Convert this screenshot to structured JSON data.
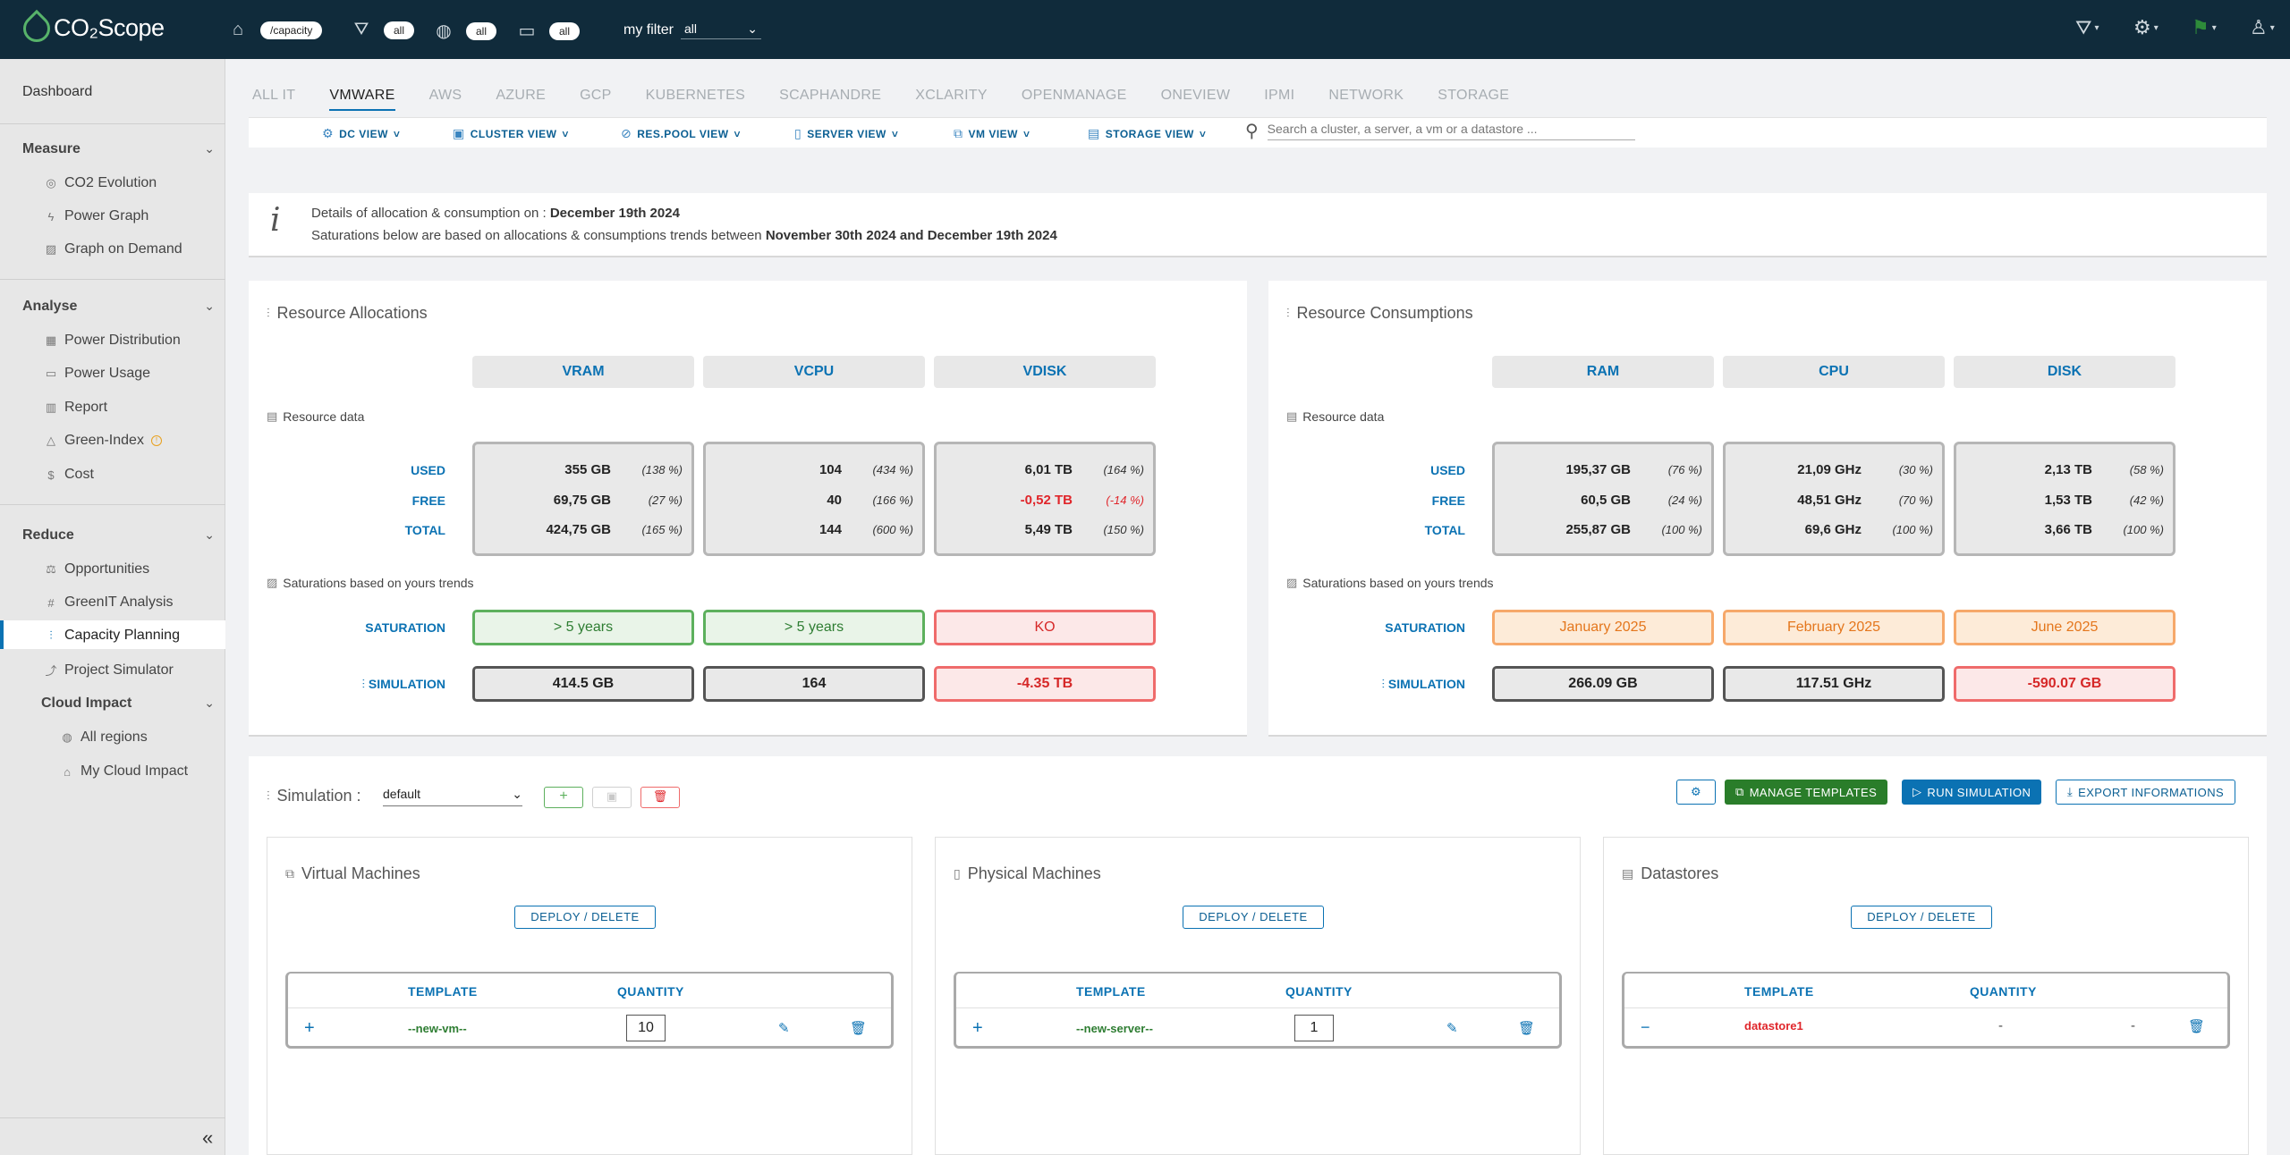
{
  "brand": {
    "logo": "CO₂Scope"
  },
  "topbar": {
    "path_pill": "/capacity",
    "filter_pill_1": "all",
    "filter_pill_2": "all",
    "filter_pill_3": "all",
    "my_filter_label": "my filter",
    "my_filter_value": "all"
  },
  "sidebar": {
    "dashboard": "Dashboard",
    "sections": [
      {
        "title": "Measure",
        "items": [
          "CO2 Evolution",
          "Power Graph",
          "Graph on Demand"
        ]
      },
      {
        "title": "Analyse",
        "items": [
          "Power Distribution",
          "Power Usage",
          "Report",
          "Green-Index",
          "Cost"
        ]
      },
      {
        "title": "Reduce",
        "items": [
          "Opportunities",
          "GreenIT Analysis",
          "Capacity Planning",
          "Project Simulator"
        ]
      },
      {
        "title": "Cloud Impact",
        "items": [
          "All regions",
          "My Cloud Impact"
        ]
      }
    ]
  },
  "tabs": [
    "ALL IT",
    "VMWARE",
    "AWS",
    "AZURE",
    "GCP",
    "KUBERNETES",
    "SCAPHANDRE",
    "XCLARITY",
    "OPENMANAGE",
    "ONEVIEW",
    "IPMI",
    "NETWORK",
    "STORAGE"
  ],
  "active_tab": "VMWARE",
  "views": [
    "DC VIEW",
    "CLUSTER VIEW",
    "RES.POOL VIEW",
    "SERVER VIEW",
    "VM VIEW",
    "STORAGE VIEW"
  ],
  "search": {
    "placeholder": "Search a cluster, a server, a vm or a datastore ..."
  },
  "info": {
    "line1_prefix": "Details of allocation & consumption on : ",
    "line1_date": "December 19th 2024",
    "line2_prefix": "Saturations below are based on allocations & consumptions trends between ",
    "line2_range": "November 30th 2024 and December 19th 2024"
  },
  "labels": {
    "resource_data": "Resource data",
    "saturations": "Saturations based on yours trends",
    "used": "USED",
    "free": "FREE",
    "total": "TOTAL",
    "saturation": "SATURATION",
    "simulation": "SIMULATION"
  },
  "allocations": {
    "title": "Resource Allocations",
    "columns": [
      {
        "name": "VRAM",
        "used": "355 GB",
        "used_pct": "(138 %)",
        "free": "69,75 GB",
        "free_pct": "(27 %)",
        "total": "424,75 GB",
        "total_pct": "(165 %)",
        "saturation": "> 5 years",
        "simulation": "414.5 GB"
      },
      {
        "name": "VCPU",
        "used": "104",
        "used_pct": "(434 %)",
        "free": "40",
        "free_pct": "(166 %)",
        "total": "144",
        "total_pct": "(600 %)",
        "saturation": "> 5 years",
        "simulation": "164"
      },
      {
        "name": "VDISK",
        "used": "6,01 TB",
        "used_pct": "(164 %)",
        "free": "-0,52 TB",
        "free_pct": "(-14 %)",
        "total": "5,49 TB",
        "total_pct": "(150 %)",
        "saturation": "KO",
        "simulation": "-4.35 TB"
      }
    ]
  },
  "consumptions": {
    "title": "Resource Consumptions",
    "columns": [
      {
        "name": "RAM",
        "used": "195,37 GB",
        "used_pct": "(76 %)",
        "free": "60,5 GB",
        "free_pct": "(24 %)",
        "total": "255,87 GB",
        "total_pct": "(100 %)",
        "saturation": "January 2025",
        "simulation": "266.09 GB"
      },
      {
        "name": "CPU",
        "used": "21,09 GHz",
        "used_pct": "(30 %)",
        "free": "48,51 GHz",
        "free_pct": "(70 %)",
        "total": "69,6 GHz",
        "total_pct": "(100 %)",
        "saturation": "February 2025",
        "simulation": "117.51 GHz"
      },
      {
        "name": "DISK",
        "used": "2,13 TB",
        "used_pct": "(58 %)",
        "free": "1,53 TB",
        "free_pct": "(42 %)",
        "total": "3,66 TB",
        "total_pct": "(100 %)",
        "saturation": "June 2025",
        "simulation": "-590.07 GB"
      }
    ]
  },
  "simulation": {
    "label": "Simulation :",
    "selected": "default",
    "manage_templates": "MANAGE TEMPLATES",
    "run_simulation": "RUN SIMULATION",
    "export": "EXPORT INFORMATIONS",
    "deploy_delete": "DEPLOY / DELETE",
    "template_header": "TEMPLATE",
    "quantity_header": "QUANTITY",
    "cards": [
      {
        "title": "Virtual Machines",
        "template": "--new-vm--",
        "quantity": "10"
      },
      {
        "title": "Physical Machines",
        "template": "--new-server--",
        "quantity": "1"
      },
      {
        "title": "Datastores",
        "template": "datastore1",
        "quantity": "-",
        "extra": "-"
      }
    ]
  },
  "colors": {
    "topbar": "#102b3b",
    "accent": "#0b72b3",
    "green": "#5db05d",
    "red": "#ef6b6b",
    "orange": "#f6a86a",
    "manage_btn": "#2a7d2a",
    "run_btn": "#0b72b3"
  }
}
